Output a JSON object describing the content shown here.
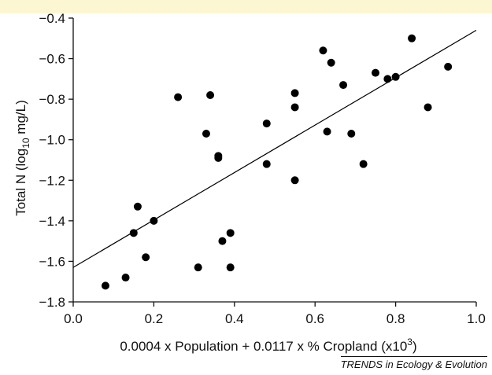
{
  "chart_data": {
    "type": "scatter",
    "title": "",
    "xlabel": {
      "main": "0.0004 x Population + 0.0117 x % Cropland (x10",
      "sup": "3",
      "end": ")"
    },
    "ylabel": {
      "main": "Total N (log",
      "sub": "10",
      "end": " mg/L)"
    },
    "xlim": [
      0.0,
      1.0
    ],
    "ylim": [
      -1.8,
      -0.4
    ],
    "xticks": [
      0.0,
      0.2,
      0.4,
      0.6,
      0.8,
      1.0
    ],
    "xtick_labels": [
      "0.0",
      "0.2",
      "0.4",
      "0.6",
      "0.8",
      "1.0"
    ],
    "yticks": [
      -1.8,
      -1.6,
      -1.4,
      -1.2,
      -1.0,
      -0.8,
      -0.6,
      -0.4
    ],
    "ytick_labels": [
      "−1.8",
      "−1.6",
      "−1.4",
      "−1.2",
      "−1.0",
      "−0.8",
      "−0.6",
      "−0.4"
    ],
    "grid": false,
    "points": [
      {
        "x": 0.08,
        "y": -1.72
      },
      {
        "x": 0.13,
        "y": -1.68
      },
      {
        "x": 0.15,
        "y": -1.46
      },
      {
        "x": 0.16,
        "y": -1.33
      },
      {
        "x": 0.18,
        "y": -1.58
      },
      {
        "x": 0.2,
        "y": -1.4
      },
      {
        "x": 0.26,
        "y": -0.79
      },
      {
        "x": 0.31,
        "y": -1.63
      },
      {
        "x": 0.33,
        "y": -0.97
      },
      {
        "x": 0.34,
        "y": -0.78
      },
      {
        "x": 0.36,
        "y": -1.08
      },
      {
        "x": 0.36,
        "y": -1.09
      },
      {
        "x": 0.37,
        "y": -1.5
      },
      {
        "x": 0.39,
        "y": -1.46
      },
      {
        "x": 0.39,
        "y": -1.63
      },
      {
        "x": 0.48,
        "y": -0.92
      },
      {
        "x": 0.48,
        "y": -1.12
      },
      {
        "x": 0.55,
        "y": -0.77
      },
      {
        "x": 0.55,
        "y": -0.84
      },
      {
        "x": 0.55,
        "y": -1.2
      },
      {
        "x": 0.62,
        "y": -0.56
      },
      {
        "x": 0.64,
        "y": -0.62
      },
      {
        "x": 0.63,
        "y": -0.96
      },
      {
        "x": 0.67,
        "y": -0.73
      },
      {
        "x": 0.69,
        "y": -0.97
      },
      {
        "x": 0.72,
        "y": -1.12
      },
      {
        "x": 0.75,
        "y": -0.67
      },
      {
        "x": 0.78,
        "y": -0.7
      },
      {
        "x": 0.8,
        "y": -0.69
      },
      {
        "x": 0.84,
        "y": -0.5
      },
      {
        "x": 0.88,
        "y": -0.84
      },
      {
        "x": 0.93,
        "y": -0.64
      }
    ],
    "regression_line": {
      "x": [
        0.0,
        1.0
      ],
      "y": [
        -1.63,
        -0.46
      ]
    },
    "marker_color": "#000000",
    "line_color": "#000000"
  },
  "credit": "TRENDS in Ecology & Evolution",
  "colors": {
    "top_band": "#fdf6d2",
    "axis": "#111111"
  }
}
